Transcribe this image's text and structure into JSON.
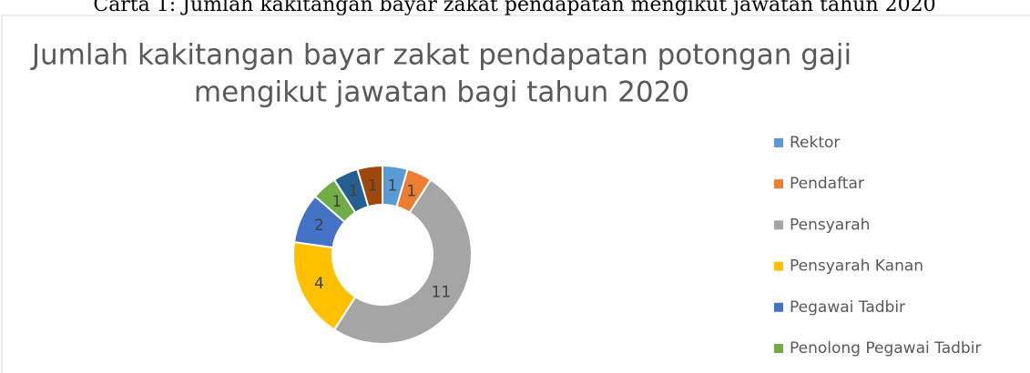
{
  "caption": "Carta 1: Jumlah kakitangan bayar zakat pendapatan mengikut jawatan tahun 2020",
  "chart_data": {
    "type": "doughnut",
    "title": [
      "Jumlah kakitangan bayar zakat pendapatan potongan gaji",
      "mengikut jawatan bagi tahun 2020"
    ],
    "categories": [
      "Rektor",
      "Pendaftar",
      "Pensyarah",
      "Pensyarah Kanan",
      "Pegawai Tadbir",
      "Penolong Pegawai Tadbir",
      null,
      null
    ],
    "values": [
      1,
      1,
      11,
      4,
      2,
      1,
      1,
      1
    ],
    "colors": [
      "#5b9bd5",
      "#ed7d31",
      "#a5a5a5",
      "#ffc000",
      "#4472c4",
      "#70ad47",
      "#255e91",
      "#9e480e"
    ]
  }
}
